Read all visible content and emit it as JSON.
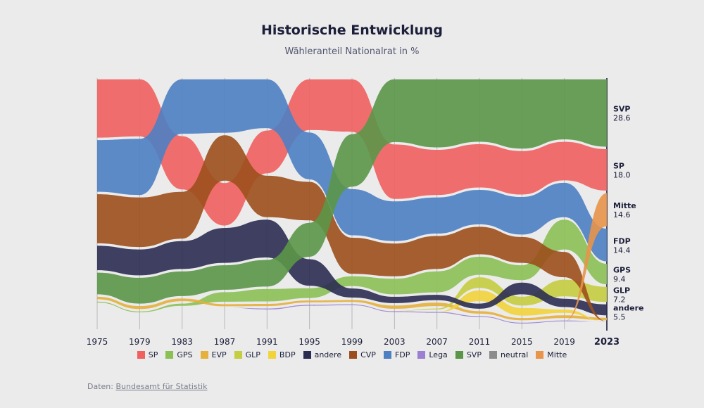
{
  "chart_data": {
    "type": "area",
    "title": "Historische Entwicklung",
    "subtitle": "Wähleranteil Nationalrat in %",
    "x": [
      1975,
      1979,
      1983,
      1987,
      1991,
      1995,
      1999,
      2003,
      2007,
      2011,
      2015,
      2019,
      2023
    ],
    "x_tick_labels": [
      "1975",
      "1979",
      "1983",
      "1987",
      "1991",
      "1995",
      "1999",
      "2003",
      "2007",
      "2011",
      "2015",
      "2019",
      "2023"
    ],
    "ylim": [
      0,
      100
    ],
    "series": [
      {
        "name": "SP",
        "color": "#f0605f",
        "values": [
          24.9,
          24.4,
          22.8,
          18.4,
          18.5,
          21.8,
          22.5,
          23.3,
          19.5,
          18.7,
          18.8,
          16.8,
          18.0
        ]
      },
      {
        "name": "GPS",
        "color": "#8bc054",
        "values": [
          0.1,
          0.6,
          1.9,
          4.9,
          6.1,
          5.0,
          5.0,
          7.4,
          9.6,
          8.4,
          7.1,
          13.2,
          9.4
        ]
      },
      {
        "name": "EVP",
        "color": "#e6b03d",
        "values": [
          2.0,
          2.2,
          2.1,
          1.9,
          1.9,
          1.8,
          1.8,
          2.3,
          2.4,
          2.0,
          1.9,
          2.1,
          2.0
        ]
      },
      {
        "name": "GLP",
        "color": "#c5cd40",
        "values": [
          0,
          0,
          0,
          0,
          0,
          0,
          0,
          0,
          1.4,
          5.4,
          4.6,
          7.8,
          7.2
        ]
      },
      {
        "name": "BDP",
        "color": "#f2d33c",
        "values": [
          0,
          0,
          0,
          0,
          0,
          0,
          0,
          0,
          0,
          5.4,
          4.1,
          2.4,
          0
        ]
      },
      {
        "name": "andere",
        "color": "#2b2c52",
        "values": [
          11.0,
          11.6,
          12.4,
          15.3,
          16.5,
          11.9,
          4.7,
          3.6,
          3.2,
          3.1,
          5.8,
          4.4,
          5.5
        ]
      },
      {
        "name": "CVP",
        "color": "#9c4f1c",
        "values": [
          21.1,
          21.3,
          20.2,
          19.6,
          18.0,
          16.8,
          15.8,
          14.4,
          14.5,
          12.3,
          11.6,
          11.4,
          0
        ]
      },
      {
        "name": "FDP",
        "color": "#4d7fc3",
        "values": [
          22.2,
          24.0,
          23.3,
          22.9,
          21.0,
          20.2,
          19.9,
          17.3,
          15.8,
          15.1,
          16.4,
          15.1,
          14.4
        ]
      },
      {
        "name": "Lega",
        "color": "#9a7fd2",
        "values": [
          0,
          0,
          0,
          0,
          1.4,
          0.9,
          0.9,
          0.4,
          0.6,
          0.8,
          1.0,
          0.8,
          0
        ]
      },
      {
        "name": "SVP",
        "color": "#5b9648",
        "values": [
          9.9,
          11.6,
          11.1,
          11.0,
          11.9,
          14.9,
          22.5,
          26.7,
          28.9,
          26.6,
          29.4,
          25.6,
          28.6
        ]
      },
      {
        "name": "neutral",
        "color": "#8c8c8c",
        "values": [
          0,
          0,
          0,
          0,
          0,
          0,
          0,
          0,
          0,
          0,
          0,
          0,
          0
        ]
      },
      {
        "name": "Mitte",
        "color": "#e8944a",
        "values": [
          0,
          0,
          0,
          0,
          0,
          0,
          0,
          0,
          0,
          0,
          0,
          0,
          14.6
        ]
      }
    ],
    "end_labels": [
      {
        "name": "SVP",
        "value": "28.6"
      },
      {
        "name": "SP",
        "value": "18.0"
      },
      {
        "name": "Mitte",
        "value": "14.6"
      },
      {
        "name": "FDP",
        "value": "14.4"
      },
      {
        "name": "GPS",
        "value": "9.4"
      },
      {
        "name": "GLP",
        "value": "7.2"
      },
      {
        "name": "andere",
        "value": "5.5"
      }
    ],
    "legend": [
      "SP",
      "GPS",
      "EVP",
      "GLP",
      "BDP",
      "andere",
      "CVP",
      "FDP",
      "Lega",
      "SVP",
      "neutral",
      "Mitte"
    ],
    "legend_position": "bottom"
  },
  "source": {
    "prefix": "Daten: ",
    "link_text": "Bundesamt für Statistik"
  }
}
